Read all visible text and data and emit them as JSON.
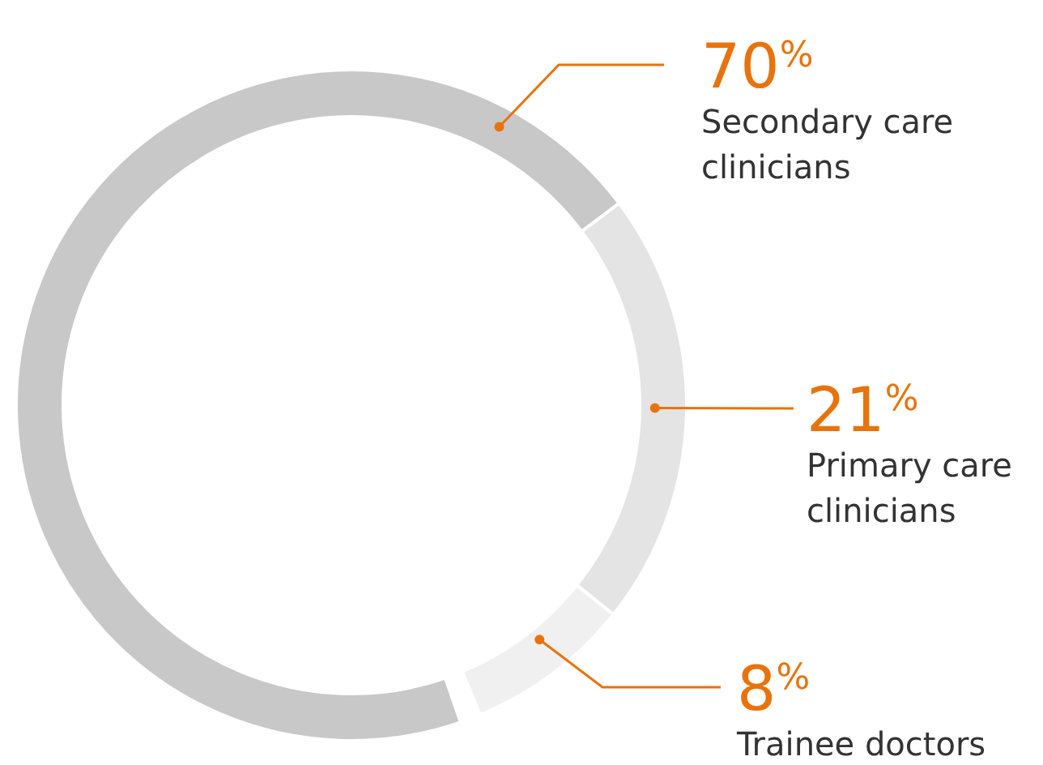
{
  "chart_data": {
    "type": "donut",
    "categories": [
      "Secondary care clinicians",
      "Primary care clinicians",
      "Trainee doctors"
    ],
    "values": [
      70,
      21,
      8
    ],
    "colors": [
      "#c8c8c8",
      "#e4e4e4",
      "#f0f0f0"
    ],
    "value_labels": [
      "70$^{%}$",
      "21$^{%}$",
      "8$^{%}$"
    ]
  }
}
